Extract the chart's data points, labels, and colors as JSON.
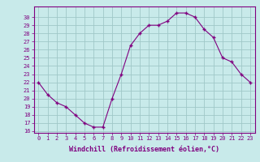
{
  "x": [
    0,
    1,
    2,
    3,
    4,
    5,
    6,
    7,
    8,
    9,
    10,
    11,
    12,
    13,
    14,
    15,
    16,
    17,
    18,
    19,
    20,
    21,
    22,
    23
  ],
  "y": [
    22,
    20.5,
    19.5,
    19,
    18,
    17,
    16.5,
    16.5,
    20,
    23,
    26.5,
    28,
    29,
    29,
    29.5,
    30.5,
    30.5,
    30,
    28.5,
    27.5,
    25,
    24.5,
    23,
    22
  ],
  "line_color": "#800080",
  "marker_color": "#800080",
  "bg_color": "#c8eaea",
  "grid_color": "#a0c8c8",
  "xlabel": "Windchill (Refroidissement éolien,°C)",
  "ylim": [
    16,
    31
  ],
  "xlim": [
    -0.5,
    23.5
  ],
  "yticks": [
    16,
    17,
    18,
    19,
    20,
    21,
    22,
    23,
    24,
    25,
    26,
    27,
    28,
    29,
    30
  ],
  "xticks": [
    0,
    1,
    2,
    3,
    4,
    5,
    6,
    7,
    8,
    9,
    10,
    11,
    12,
    13,
    14,
    15,
    16,
    17,
    18,
    19,
    20,
    21,
    22,
    23
  ],
  "label_fontsize": 6.0,
  "tick_fontsize": 5.0,
  "spine_color": "#800080"
}
